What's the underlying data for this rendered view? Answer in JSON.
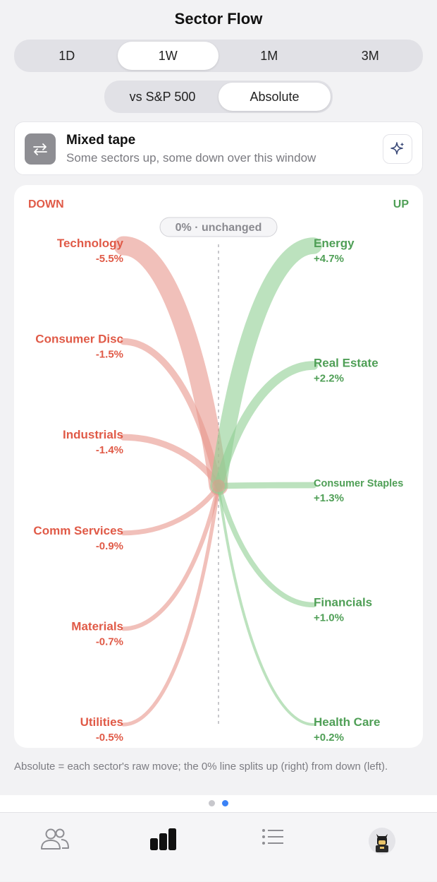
{
  "header": {
    "title": "Sector Flow"
  },
  "range_tabs": [
    {
      "label": "1D",
      "active": false
    },
    {
      "label": "1W",
      "active": true
    },
    {
      "label": "1M",
      "active": false
    },
    {
      "label": "3M",
      "active": false
    }
  ],
  "mode_tabs": [
    {
      "label": "vs S&P 500",
      "active": false
    },
    {
      "label": "Absolute",
      "active": true
    }
  ],
  "banner": {
    "icon": "swap-arrows-icon",
    "title": "Mixed tape",
    "subtitle": "Some sectors up, some down over this window",
    "action_icon": "sparkles-icon"
  },
  "flow_chart": {
    "down_label": "DOWN",
    "up_label": "UP",
    "center_label": "0% · unchanged",
    "colors": {
      "down": "#e05a47",
      "up": "#4f9f56",
      "down_band": "#e8968c",
      "up_band": "#8fcf92"
    }
  },
  "chart_data": {
    "type": "flow",
    "center_value": 0,
    "down": [
      {
        "name": "Technology",
        "change": -5.5,
        "label": "-5.5%"
      },
      {
        "name": "Consumer Disc",
        "change": -1.5,
        "label": "-1.5%"
      },
      {
        "name": "Industrials",
        "change": -1.4,
        "label": "-1.4%"
      },
      {
        "name": "Comm Services",
        "change": -0.9,
        "label": "-0.9%"
      },
      {
        "name": "Materials",
        "change": -0.7,
        "label": "-0.7%"
      },
      {
        "name": "Utilities",
        "change": -0.5,
        "label": "-0.5%"
      }
    ],
    "up": [
      {
        "name": "Energy",
        "change": 4.7,
        "label": "+4.7%"
      },
      {
        "name": "Real Estate",
        "change": 2.2,
        "label": "+2.2%"
      },
      {
        "name": "Consumer Staples",
        "change": 1.3,
        "label": "+1.3%"
      },
      {
        "name": "Financials",
        "change": 1.0,
        "label": "+1.0%"
      },
      {
        "name": "Health Care",
        "change": 0.2,
        "label": "+0.2%"
      }
    ]
  },
  "footnote": "Absolute = each sector's raw move; the 0% line splits up (right) from down (left).",
  "pager": {
    "count": 2,
    "active": 1
  },
  "tabbar": [
    {
      "icon": "people-icon",
      "active": false
    },
    {
      "icon": "bar-chart-icon",
      "active": true
    },
    {
      "icon": "list-icon",
      "active": false
    },
    {
      "icon": "avatar-icon",
      "active": false
    }
  ]
}
